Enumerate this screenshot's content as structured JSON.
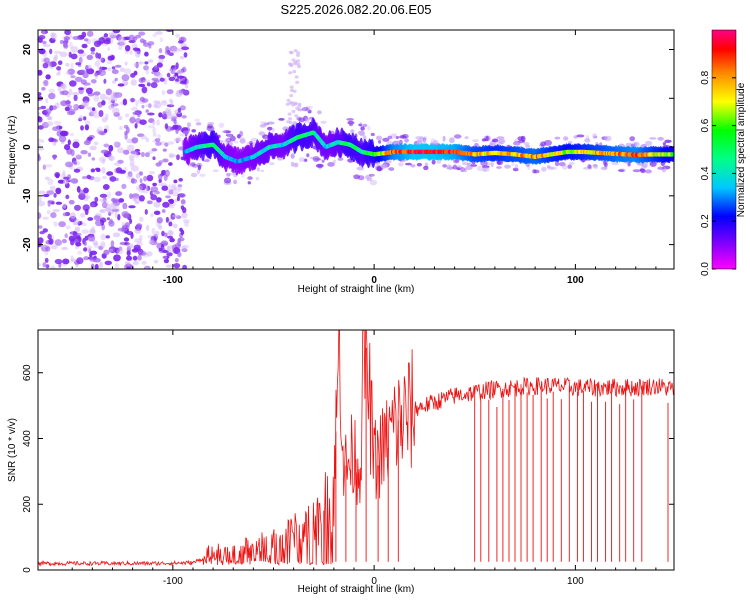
{
  "title": "S225.2026.082.20.06.E05",
  "colors": {
    "snr_line": "#ee1111",
    "axis": "#000000"
  },
  "chart_data": [
    {
      "type": "heatmap",
      "name": "spectrogram",
      "xlabel": "Height of straight line (km)",
      "ylabel": "Frequency (Hz)",
      "xlim": [
        -167,
        149
      ],
      "ylim": [
        -25,
        24
      ],
      "xticks": [
        -100,
        0,
        100
      ],
      "yticks": [
        -20,
        -10,
        0,
        10,
        20
      ],
      "grid": false,
      "colorbar": {
        "label": "Normalized spectral amplitude",
        "range": [
          0,
          1
        ],
        "ticks": [
          "0.0",
          "0.2",
          "0.4",
          "0.6",
          "0.8"
        ],
        "colormap": [
          "#ff00ff",
          "#8800ff",
          "#0000ff",
          "#00c8ff",
          "#00ff88",
          "#00ff00",
          "#ffff00",
          "#ff8800",
          "#ff0000",
          "#ff0088"
        ]
      },
      "signal_track": {
        "x": [
          -94,
          -88,
          -80,
          -74,
          -68,
          -60,
          -52,
          -45,
          -38,
          -30,
          -24,
          -18,
          -12,
          -6,
          0,
          10,
          20,
          30,
          40,
          50,
          60,
          70,
          80,
          88,
          96,
          104,
          112,
          120,
          130,
          140,
          149
        ],
        "freq": [
          -1,
          0,
          0.5,
          -2,
          -3,
          -2,
          0,
          0.5,
          2,
          3,
          0,
          1,
          0.5,
          -1,
          -1.5,
          -1,
          -1,
          -1,
          -1,
          -1.5,
          -1.2,
          -1.5,
          -2,
          -1.5,
          -1,
          -1,
          -1.2,
          -1.4,
          -1.6,
          -1.5,
          -1.5
        ],
        "amplitude": [
          0.3,
          0.4,
          0.5,
          0.35,
          0.3,
          0.35,
          0.4,
          0.35,
          0.5,
          0.45,
          0.35,
          0.4,
          0.5,
          0.45,
          0.55,
          0.85,
          0.95,
          0.95,
          0.9,
          0.75,
          0.7,
          0.75,
          0.8,
          0.7,
          0.65,
          0.7,
          0.75,
          0.8,
          0.85,
          0.7,
          0.6
        ]
      },
      "noise_region": {
        "x": [
          -167,
          -93
        ],
        "freq": [
          -25,
          24
        ]
      }
    },
    {
      "type": "line",
      "name": "snr",
      "xlabel": "Height of straight line (km)",
      "ylabel": "SNR (10 * v/v)",
      "xlim": [
        -167,
        149
      ],
      "ylim": [
        0,
        730
      ],
      "xticks": [
        -100,
        0,
        100
      ],
      "yticks": [
        0,
        200,
        400,
        600
      ],
      "grid": false,
      "series": [
        {
          "name": "SNR",
          "x": [
            -167,
            -150,
            -130,
            -110,
            -90,
            -85,
            -80,
            -75,
            -70,
            -60,
            -50,
            -40,
            -30,
            -25,
            -20,
            -17,
            -15,
            -12,
            -10,
            -7,
            -5,
            0,
            5,
            10,
            15,
            20,
            30,
            40,
            50,
            60,
            70,
            80,
            90,
            100,
            110,
            120,
            130,
            140,
            149
          ],
          "y": [
            20,
            20,
            20,
            20,
            22,
            35,
            60,
            45,
            55,
            70,
            80,
            110,
            150,
            180,
            260,
            720,
            300,
            330,
            360,
            300,
            730,
            330,
            370,
            440,
            460,
            490,
            510,
            530,
            540,
            550,
            555,
            560,
            560,
            555,
            555,
            555,
            555,
            560,
            550
          ]
        }
      ],
      "dropouts_x": [
        -25,
        -19,
        -14,
        -9,
        -4,
        2,
        7,
        12,
        50,
        53,
        57,
        61,
        64,
        67,
        70,
        73,
        76,
        79,
        83,
        86,
        89,
        93,
        97,
        101,
        104,
        108,
        111,
        115,
        118,
        122,
        125,
        129,
        133,
        146
      ]
    }
  ]
}
